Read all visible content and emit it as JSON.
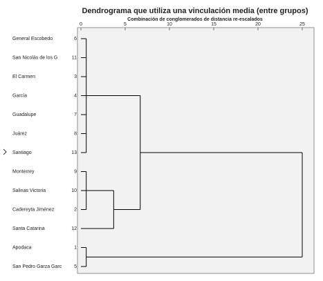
{
  "chart_data": {
    "type": "dendrogram",
    "title": "Dendrograma que utiliza una vinculación media (entre grupos)",
    "x_label": "Combinación de conglomerados de distancia re-escalados",
    "xlim": [
      0,
      25
    ],
    "xticks": [
      0,
      5,
      10,
      15,
      20,
      25
    ],
    "color": "#000000",
    "tree": {
      "height": 25,
      "children": [
        {
          "height": 6.7,
          "children": [
            {
              "height": 0.6,
              "children": [
                {
                  "label": "General Escobedo",
                  "case": "6"
                },
                {
                  "label": "San Nicolás de los G",
                  "case": "11"
                },
                {
                  "label": "El Carmen",
                  "case": "3"
                },
                {
                  "label": "García",
                  "case": "4"
                },
                {
                  "label": "Guadalupe",
                  "case": "7"
                },
                {
                  "label": "Juárez",
                  "case": "8"
                },
                {
                  "label": "Santiago",
                  "case": "13"
                }
              ]
            },
            {
              "height": 3.7,
              "children": [
                {
                  "height": 0.6,
                  "children": [
                    {
                      "label": "Monterrey",
                      "case": "9"
                    },
                    {
                      "label": "Salinas Victoria",
                      "case": "10"
                    },
                    {
                      "label": "Cadereyta Jiménez",
                      "case": "2"
                    }
                  ]
                },
                {
                  "label": "Santa Catarina",
                  "case": "12"
                }
              ]
            }
          ]
        },
        {
          "height": 0.6,
          "children": [
            {
              "label": "Apodaca",
              "case": "1"
            },
            {
              "label": "San Pedro Garza Garc",
              "case": "5"
            }
          ]
        }
      ]
    }
  }
}
